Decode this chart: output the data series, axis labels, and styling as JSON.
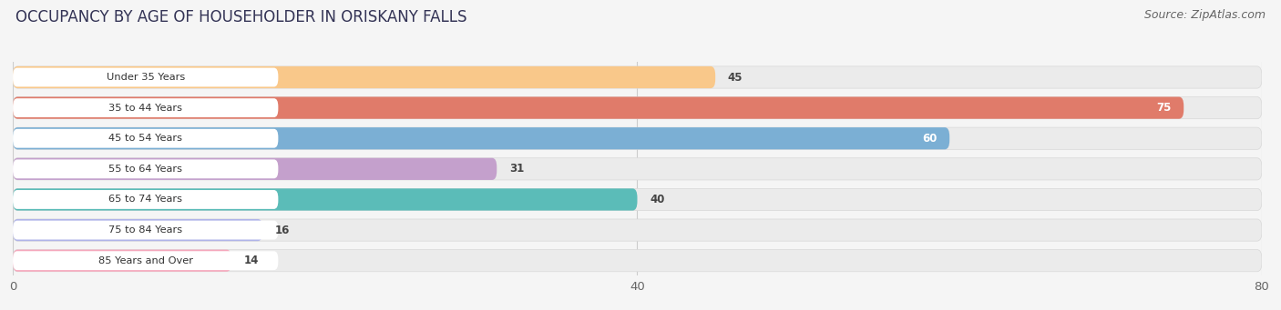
{
  "title": "OCCUPANCY BY AGE OF HOUSEHOLDER IN ORISKANY FALLS",
  "source": "Source: ZipAtlas.com",
  "categories": [
    "Under 35 Years",
    "35 to 44 Years",
    "45 to 54 Years",
    "55 to 64 Years",
    "65 to 74 Years",
    "75 to 84 Years",
    "85 Years and Over"
  ],
  "values": [
    45,
    75,
    60,
    31,
    40,
    16,
    14
  ],
  "bar_colors": [
    "#F9C88A",
    "#E07B6A",
    "#7BAFD4",
    "#C4A0CC",
    "#5BBCB8",
    "#B0B4E8",
    "#F5A8BC"
  ],
  "bar_bg_colors": [
    "#EBEBEB",
    "#EBEBEB",
    "#EBEBEB",
    "#EBEBEB",
    "#EBEBEB",
    "#EBEBEB",
    "#EBEBEB"
  ],
  "value_label_inside": [
    false,
    true,
    true,
    false,
    false,
    false,
    false
  ],
  "xlim": [
    0,
    80
  ],
  "xticks": [
    0,
    40,
    80
  ],
  "title_fontsize": 12,
  "source_fontsize": 9,
  "background_color": "#f5f5f5",
  "white_label_bg": "#ffffff"
}
